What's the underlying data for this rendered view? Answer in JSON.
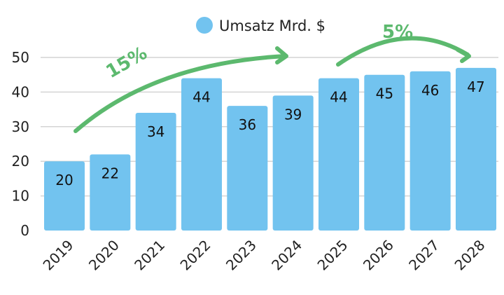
{
  "chart_data": {
    "type": "bar",
    "title": "",
    "xlabel": "",
    "ylabel": "",
    "categories": [
      "2019",
      "2020",
      "2021",
      "2022",
      "2023",
      "2024",
      "2025",
      "2026",
      "2027",
      "2028"
    ],
    "series": [
      {
        "name": "Umsatz Mrd. $",
        "values": [
          20,
          22,
          34,
          44,
          36,
          39,
          44,
          45,
          46,
          47
        ]
      }
    ],
    "ylim": [
      0,
      50
    ],
    "yticks": [
      0,
      10,
      20,
      30,
      40,
      50
    ],
    "grid": true,
    "legend": "top-center",
    "annotations": [
      {
        "text": "15%",
        "from": "2019",
        "to": "2024"
      },
      {
        "text": "5%",
        "from": "2025",
        "to": "2028"
      }
    ],
    "colors": {
      "bar": "#72c3ef",
      "arrow": "#5cb96e"
    }
  }
}
